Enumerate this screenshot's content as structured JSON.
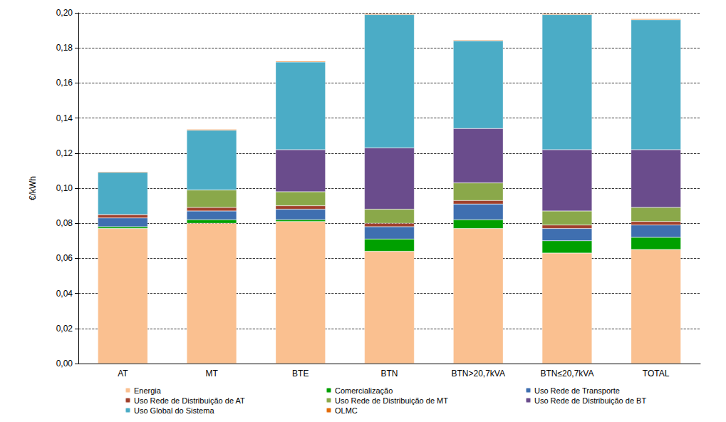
{
  "chart_data": {
    "type": "bar",
    "stacked": true,
    "y_label": "€/kWh",
    "categories": [
      "AT",
      "MT",
      "BTE",
      "BTN",
      "BTN>20,7kVA",
      "BTN≤20,7kVA",
      "TOTAL"
    ],
    "series": [
      {
        "name": "Energia",
        "color": "#fac090",
        "values": [
          0.077,
          0.08,
          0.081,
          0.064,
          0.077,
          0.063,
          0.065
        ]
      },
      {
        "name": "Comercialização",
        "color": "#00a000",
        "values": [
          0.001,
          0.002,
          0.001,
          0.007,
          0.005,
          0.007,
          0.007
        ]
      },
      {
        "name": "Uso Rede de Transporte",
        "color": "#3f6fb0",
        "values": [
          0.005,
          0.005,
          0.006,
          0.007,
          0.009,
          0.007,
          0.007
        ]
      },
      {
        "name": "Uso Rede de Distribuição de AT",
        "color": "#a0402c",
        "values": [
          0.002,
          0.002,
          0.002,
          0.002,
          0.002,
          0.002,
          0.002
        ]
      },
      {
        "name": "Uso Rede de Distribuição de MT",
        "color": "#8aa84a",
        "values": [
          0,
          0.01,
          0.008,
          0.008,
          0.01,
          0.008,
          0.008
        ]
      },
      {
        "name": "Uso Rede de Distribuição de BT",
        "color": "#6a4c8c",
        "values": [
          0,
          0,
          0.024,
          0.035,
          0.031,
          0.035,
          0.033
        ]
      },
      {
        "name": "Uso Global do Sistema",
        "color": "#4bacc6",
        "values": [
          0.024,
          0.034,
          0.05,
          0.076,
          0.05,
          0.077,
          0.074
        ]
      },
      {
        "name": "OLMC",
        "color": "#e46c0a",
        "values": [
          0.0005,
          0.0005,
          0.0005,
          0.0005,
          0.0005,
          0.0005,
          0.0005
        ]
      }
    ],
    "ylim": [
      0,
      0.2
    ],
    "yticks": [
      {
        "value": 0,
        "label": "0,00"
      },
      {
        "value": 0.02,
        "label": "0,02"
      },
      {
        "value": 0.04,
        "label": "0,04"
      },
      {
        "value": 0.06,
        "label": "0,06"
      },
      {
        "value": 0.08,
        "label": "0,08"
      },
      {
        "value": 0.1,
        "label": "0,10"
      },
      {
        "value": 0.12,
        "label": "0,12"
      },
      {
        "value": 0.14,
        "label": "0,14"
      },
      {
        "value": 0.16,
        "label": "0,16"
      },
      {
        "value": 0.18,
        "label": "0,18"
      },
      {
        "value": 0.2,
        "label": "0,20"
      }
    ],
    "grid": true,
    "legend": "bottom"
  }
}
